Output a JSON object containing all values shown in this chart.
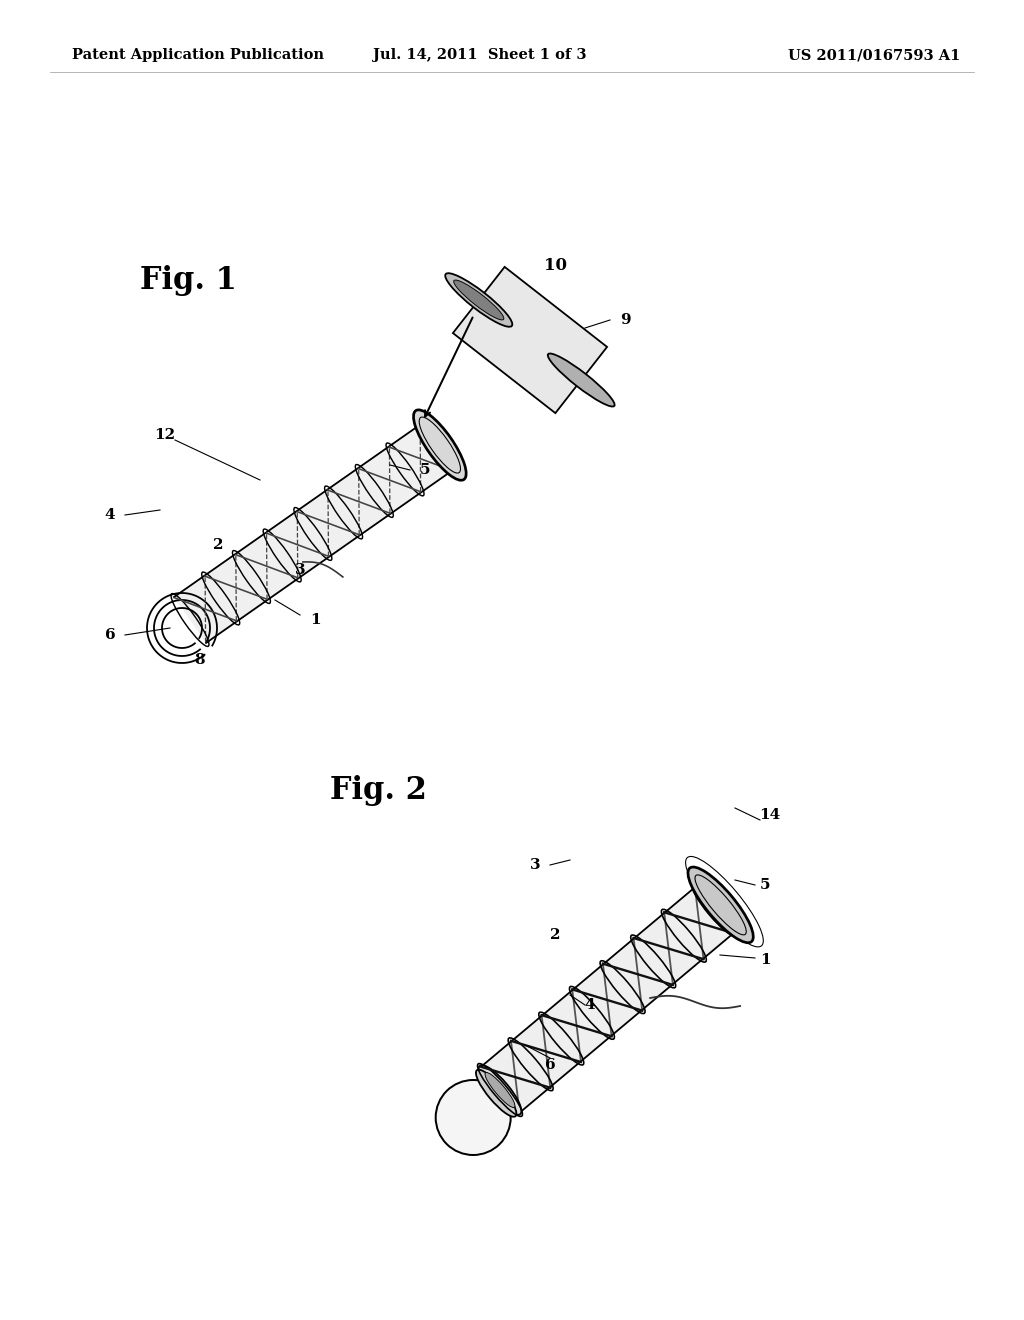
{
  "background_color": "#ffffff",
  "header_left": "Patent Application Publication",
  "header_center": "Jul. 14, 2011  Sheet 1 of 3",
  "header_right": "US 2011/0167593 A1",
  "header_fontsize": 10.5,
  "fig1_label": "Fig. 1",
  "fig2_label": "Fig. 2",
  "fig1_label_fontsize": 22,
  "fig2_label_fontsize": 22,
  "text_color": "#000000",
  "line_color": "#000000"
}
